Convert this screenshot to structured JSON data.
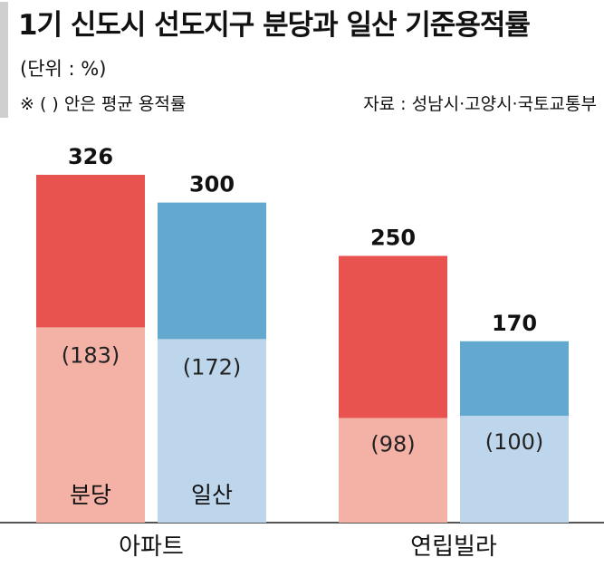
{
  "chart_data": {
    "type": "bar",
    "title": "1기 신도시 선도지구 분당과 일산 기준용적률",
    "unit": "(단위 : %)",
    "note": "※ (   ) 안은 평균 용적률",
    "source": "자료 : 성남시·고양시·국토교통부",
    "categories": [
      "아파트",
      "연립빌라"
    ],
    "series": [
      {
        "name": "분당",
        "values": [
          326,
          250
        ],
        "average_values": [
          183,
          98
        ],
        "average_labels": [
          "(183)",
          "(98)"
        ],
        "color": "#e8524f",
        "average_color": "#f4b1a6"
      },
      {
        "name": "일산",
        "values": [
          300,
          170
        ],
        "average_values": [
          172,
          100
        ],
        "average_labels": [
          "(172)",
          "(100)"
        ],
        "color": "#62a8cf",
        "average_color": "#bdd6ec"
      }
    ],
    "ylim": [
      0,
      360
    ]
  },
  "colors": {
    "accent_bar": "#cfcfcf",
    "axis": "#555555"
  }
}
